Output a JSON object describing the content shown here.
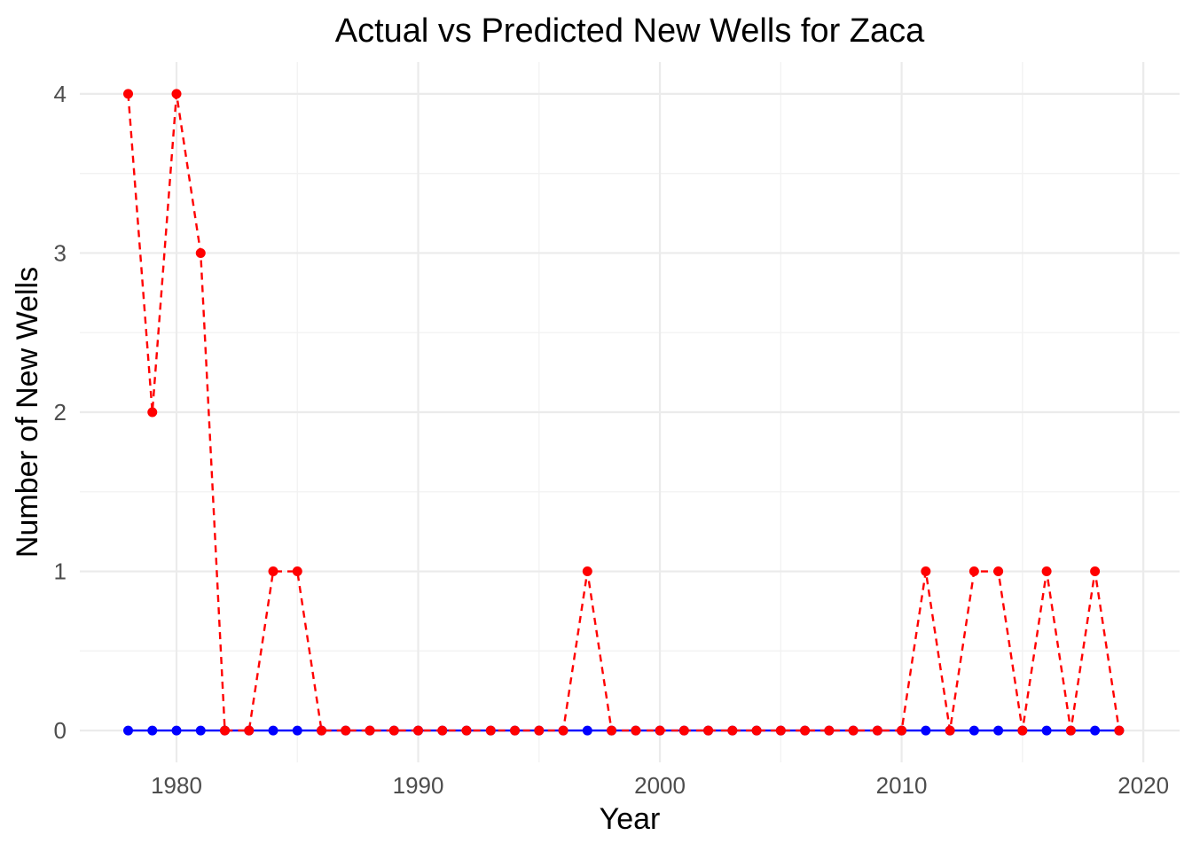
{
  "chart_data": {
    "type": "line",
    "title": "Actual vs Predicted New Wells for Zaca",
    "xlabel": "Year",
    "ylabel": "Number of New Wells",
    "xlim": [
      1976,
      2021.5
    ],
    "ylim": [
      -0.2,
      4.2
    ],
    "x_ticks": [
      1980,
      1990,
      2000,
      2010,
      2020
    ],
    "y_ticks": [
      0,
      1,
      2,
      3,
      4
    ],
    "grid": true,
    "legend": "none",
    "x": [
      1978,
      1979,
      1980,
      1981,
      1982,
      1983,
      1984,
      1985,
      1986,
      1987,
      1988,
      1989,
      1990,
      1991,
      1992,
      1993,
      1994,
      1995,
      1996,
      1997,
      1998,
      1999,
      2000,
      2001,
      2002,
      2003,
      2004,
      2005,
      2006,
      2007,
      2008,
      2009,
      2010,
      2011,
      2012,
      2013,
      2014,
      2015,
      2016,
      2017,
      2018,
      2019
    ],
    "series": [
      {
        "color": "#0000ff",
        "line_style": "solid",
        "values": [
          0,
          0,
          0,
          0,
          0,
          0,
          0,
          0,
          0,
          0,
          0,
          0,
          0,
          0,
          0,
          0,
          0,
          0,
          0,
          0,
          0,
          0,
          0,
          0,
          0,
          0,
          0,
          0,
          0,
          0,
          0,
          0,
          0,
          0,
          0,
          0,
          0,
          0,
          0,
          0,
          0,
          0
        ]
      },
      {
        "color": "#ff0000",
        "line_style": "dashed",
        "values": [
          4,
          2,
          4,
          3,
          0,
          0,
          1,
          1,
          0,
          0,
          0,
          0,
          0,
          0,
          0,
          0,
          0,
          0,
          0,
          1,
          0,
          0,
          0,
          0,
          0,
          0,
          0,
          0,
          0,
          0,
          0,
          0,
          0,
          1,
          0,
          1,
          1,
          0,
          1,
          0,
          1,
          0
        ]
      }
    ]
  }
}
